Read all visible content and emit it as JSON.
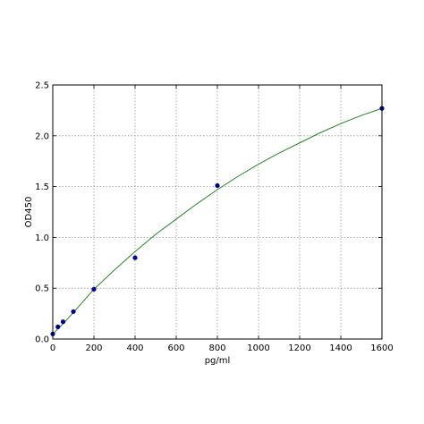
{
  "chart_data": {
    "type": "scatter",
    "title": "",
    "xlabel": "pg/ml",
    "ylabel": "OD450",
    "xlim": [
      0,
      1600
    ],
    "ylim": [
      0,
      2.5
    ],
    "xticks": [
      "0",
      "200",
      "400",
      "600",
      "800",
      "1000",
      "1200",
      "1400",
      "1600"
    ],
    "yticks": [
      "0.0",
      "0.5",
      "1.0",
      "1.5",
      "2.0",
      "2.5"
    ],
    "grid": true,
    "legend": "none",
    "series": [
      {
        "type": "scatter",
        "color": "#00008b",
        "points": [
          {
            "x": 0,
            "y": 0.05
          },
          {
            "x": 25,
            "y": 0.12
          },
          {
            "x": 50,
            "y": 0.17
          },
          {
            "x": 100,
            "y": 0.27
          },
          {
            "x": 200,
            "y": 0.49
          },
          {
            "x": 400,
            "y": 0.8
          },
          {
            "x": 800,
            "y": 1.51
          },
          {
            "x": 1600,
            "y": 2.27
          }
        ]
      },
      {
        "type": "line",
        "color": "#2e7d2e",
        "points": [
          {
            "x": 0,
            "y": 0.05
          },
          {
            "x": 50,
            "y": 0.15
          },
          {
            "x": 100,
            "y": 0.26
          },
          {
            "x": 200,
            "y": 0.49
          },
          {
            "x": 300,
            "y": 0.68
          },
          {
            "x": 400,
            "y": 0.86
          },
          {
            "x": 500,
            "y": 1.03
          },
          {
            "x": 600,
            "y": 1.18
          },
          {
            "x": 700,
            "y": 1.33
          },
          {
            "x": 800,
            "y": 1.47
          },
          {
            "x": 900,
            "y": 1.6
          },
          {
            "x": 1000,
            "y": 1.72
          },
          {
            "x": 1100,
            "y": 1.83
          },
          {
            "x": 1200,
            "y": 1.93
          },
          {
            "x": 1300,
            "y": 2.03
          },
          {
            "x": 1400,
            "y": 2.12
          },
          {
            "x": 1500,
            "y": 2.2
          },
          {
            "x": 1600,
            "y": 2.27
          }
        ]
      }
    ]
  }
}
